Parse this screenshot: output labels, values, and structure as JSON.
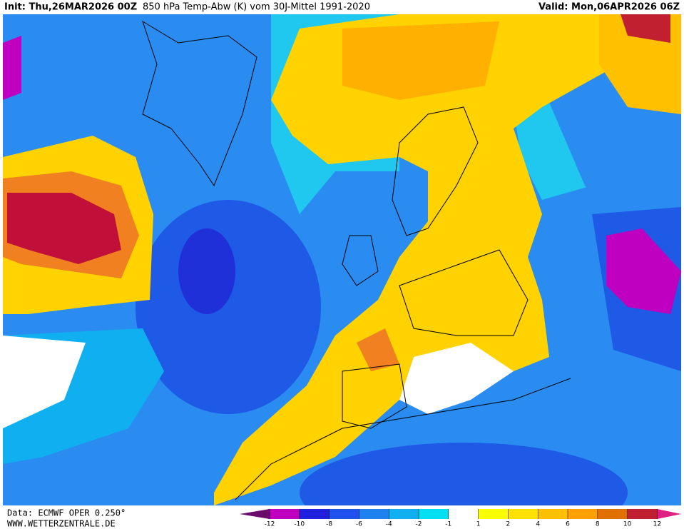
{
  "header": {
    "init": "Init: Thu,26MAR2026 00Z",
    "title": "850 hPa Temp-Abw (K) vom 30J-Mittel 1991-2020",
    "valid": "Valid: Mon,06APR2026 06Z"
  },
  "footer": {
    "source": "Data: ECMWF OPER 0.250°",
    "website": "WWW.WETTERZENTRALE.DE"
  },
  "legend": {
    "ticks": [
      -12,
      -10,
      -8,
      -6,
      -4,
      -2,
      -1,
      1,
      2,
      4,
      6,
      8,
      10,
      12
    ]
  }
}
